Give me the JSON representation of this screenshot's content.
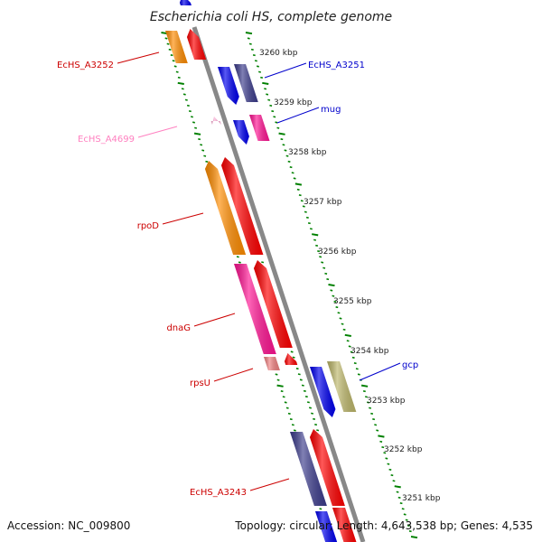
{
  "title": "Escherichia coli HS, complete genome",
  "accession": "Accession: NC_009800",
  "summary": "Topology: circular; Length: 4,643,538 bp; Genes: 4,535",
  "colors": {
    "orange": "#ff8c00",
    "red": "#ff0000",
    "blue": "#0000ee",
    "navy": "#3c3c8c",
    "magenta": "#ff1493",
    "pink": "#ffb0d8",
    "salmon": "#f08080",
    "olive": "#bdb76b",
    "label_red": "#cc0000",
    "label_blue": "#0000cc",
    "label_pink": "#ff80c0",
    "tick_green": "#008000",
    "backbone": "#888888"
  },
  "scale_ticks": [
    {
      "label": "3260 kbp"
    },
    {
      "label": "3259 kbp"
    },
    {
      "label": "3258 kbp"
    },
    {
      "label": "3257 kbp"
    },
    {
      "label": "3256 kbp"
    },
    {
      "label": "3255 kbp"
    },
    {
      "label": "3254 kbp"
    },
    {
      "label": "3253 kbp"
    },
    {
      "label": "3252 kbp"
    },
    {
      "label": "3251 kbp"
    }
  ],
  "gene_labels": [
    {
      "name": "EcHS_A3252",
      "color": "label_red"
    },
    {
      "name": "EcHS_A3251",
      "color": "label_blue"
    },
    {
      "name": "mug",
      "color": "label_blue"
    },
    {
      "name": "EcHS_A4699",
      "color": "label_pink"
    },
    {
      "name": "rpoD",
      "color": "label_red"
    },
    {
      "name": "dnaG",
      "color": "label_red"
    },
    {
      "name": "rpsU",
      "color": "label_red"
    },
    {
      "name": "gcp",
      "color": "label_blue"
    },
    {
      "name": "EcHS_A3243",
      "color": "label_red"
    }
  ]
}
